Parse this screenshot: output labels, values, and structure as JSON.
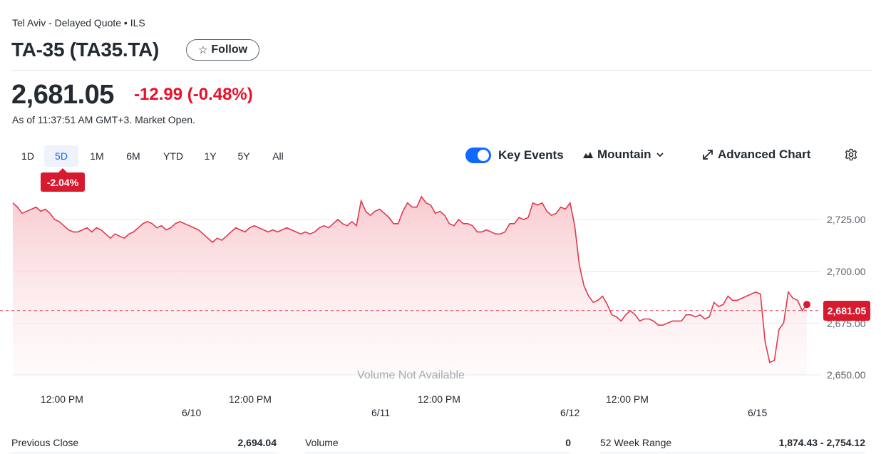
{
  "quote": {
    "exchange": "Tel Aviv - Delayed Quote • ILS",
    "title": "TA-35 (TA35.TA)",
    "follow_label": "Follow",
    "price": "2,681.05",
    "change": "-12.99",
    "change_pct": "(-0.48%)",
    "as_of": "As of 11:37:51 AM GMT+3. Market Open."
  },
  "ranges": [
    "1D",
    "5D",
    "1M",
    "6M",
    "YTD",
    "1Y",
    "5Y",
    "All"
  ],
  "active_range": "5D",
  "period_change_badge": "-2.04%",
  "toolbar": {
    "key_events_label": "Key Events",
    "key_events_on": true,
    "chart_type_label": "Mountain",
    "advanced_chart_label": "Advanced Chart"
  },
  "chart_data": {
    "type": "area",
    "title": "TA-35 5D",
    "y_ticks": [
      "2,725.00",
      "2,700.00",
      "2,675.00",
      "2,650.00"
    ],
    "y_tick_values": [
      2725,
      2700,
      2675,
      2650
    ],
    "ylim": [
      2645,
      2740
    ],
    "x_time_labels": [
      "12:00 PM",
      "12:00 PM",
      "12:00 PM",
      "12:00 PM"
    ],
    "x_date_labels": [
      "6/10",
      "6/11",
      "6/12",
      "6/15"
    ],
    "previous_close": 2694.04,
    "current_price": 2681.05,
    "current_label": "2,681.05",
    "volume_note": "Volume Not Available",
    "values": [
      2733,
      2731,
      2728,
      2729,
      2730,
      2731,
      2729,
      2730,
      2728,
      2725,
      2724,
      2722,
      2720,
      2719,
      2719,
      2720,
      2721,
      2719,
      2721,
      2720,
      2718,
      2716,
      2718,
      2717,
      2716,
      2718,
      2719,
      2721,
      2723,
      2724,
      2723,
      2721,
      2722,
      2720,
      2721,
      2723,
      2724,
      2723,
      2722,
      2721,
      2720,
      2718,
      2716,
      2714,
      2716,
      2715,
      2717,
      2719,
      2721,
      2720,
      2719,
      2721,
      2722,
      2721,
      2720,
      2719,
      2720,
      2719,
      2720,
      2721,
      2720,
      2719,
      2718,
      2719,
      2718,
      2719,
      2721,
      2722,
      2721,
      2723,
      2725,
      2723,
      2722,
      2724,
      2722,
      2734,
      2729,
      2727,
      2729,
      2730,
      2728,
      2726,
      2723,
      2723,
      2729,
      2733,
      2731,
      2731,
      2736,
      2733,
      2732,
      2728,
      2729,
      2727,
      2723,
      2722,
      2725,
      2723,
      2723,
      2722,
      2719,
      2719,
      2720,
      2719,
      2718,
      2718,
      2719,
      2723,
      2723,
      2726,
      2725,
      2726,
      2733,
      2732,
      2733,
      2729,
      2727,
      2728,
      2731,
      2730,
      2733,
      2722,
      2703,
      2693,
      2688,
      2685,
      2686,
      2688,
      2684,
      2679,
      2678,
      2676,
      2679,
      2681,
      2679,
      2676,
      2677,
      2677,
      2676,
      2674,
      2674,
      2675,
      2676,
      2676,
      2676,
      2679,
      2679,
      2678,
      2679,
      2677,
      2678,
      2685,
      2683,
      2684,
      2688,
      2686,
      2686,
      2687,
      2688,
      2689,
      2690,
      2689,
      2666,
      2656,
      2657,
      2672,
      2675,
      2690,
      2687,
      2686,
      2681,
      2684
    ]
  },
  "stats": {
    "previous_close_label": "Previous Close",
    "previous_close_value": "2,694.04",
    "volume_label": "Volume",
    "volume_value": "0",
    "week52_label": "52 Week Range",
    "week52_value": "1,874.43 - 2,754.12"
  }
}
